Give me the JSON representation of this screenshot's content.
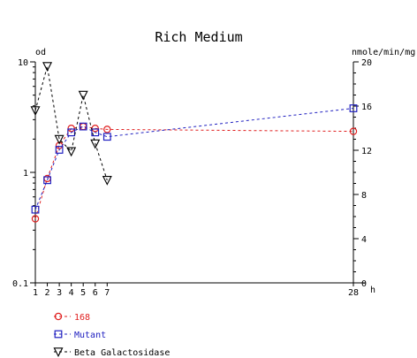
{
  "chart_data": {
    "type": "line",
    "title": "Rich Medium",
    "left_axis": {
      "unit": "od",
      "scale": "log",
      "ylim": [
        0.1,
        10
      ],
      "ticks": [
        0.1,
        1,
        10
      ],
      "tick_labels": [
        "0.1",
        "1",
        "10"
      ]
    },
    "right_axis": {
      "unit": "nmole/min/mg",
      "scale": "linear",
      "ylim": [
        0,
        20
      ],
      "ticks": [
        0,
        4,
        8,
        12,
        16,
        20
      ],
      "tick_labels": [
        "0",
        "4",
        "8",
        "12",
        "16",
        "20"
      ]
    },
    "x_axis": {
      "unit": "h",
      "ticks": [
        1,
        2,
        3,
        4,
        5,
        6,
        7,
        28
      ],
      "tick_labels": [
        "1",
        "2",
        "3",
        "4",
        "5",
        "6",
        "7",
        "28"
      ]
    },
    "series": [
      {
        "name": "168",
        "legend_label": "168",
        "axis": "left",
        "color": "#e02020",
        "marker": "circle",
        "x": [
          1,
          2,
          3,
          4,
          5,
          6,
          7,
          28
        ],
        "y": [
          0.38,
          0.88,
          1.75,
          2.5,
          2.6,
          2.5,
          2.45,
          2.35
        ]
      },
      {
        "name": "Mutant",
        "legend_label": "Mutant",
        "axis": "left",
        "color": "#2020c0",
        "marker": "square",
        "x": [
          1,
          2,
          3,
          4,
          5,
          6,
          7,
          28
        ],
        "y": [
          0.46,
          0.85,
          1.6,
          2.3,
          2.6,
          2.3,
          2.1,
          3.8
        ]
      },
      {
        "name": "Beta Galactosidase",
        "legend_label": "Beta Galactosidase",
        "axis": "right",
        "color": "#000000",
        "marker": "triangle-down",
        "x": [
          1,
          2,
          3,
          4,
          5,
          6,
          7
        ],
        "y": [
          15.6,
          19.6,
          13.0,
          11.9,
          17.0,
          12.6,
          9.3
        ]
      }
    ]
  }
}
